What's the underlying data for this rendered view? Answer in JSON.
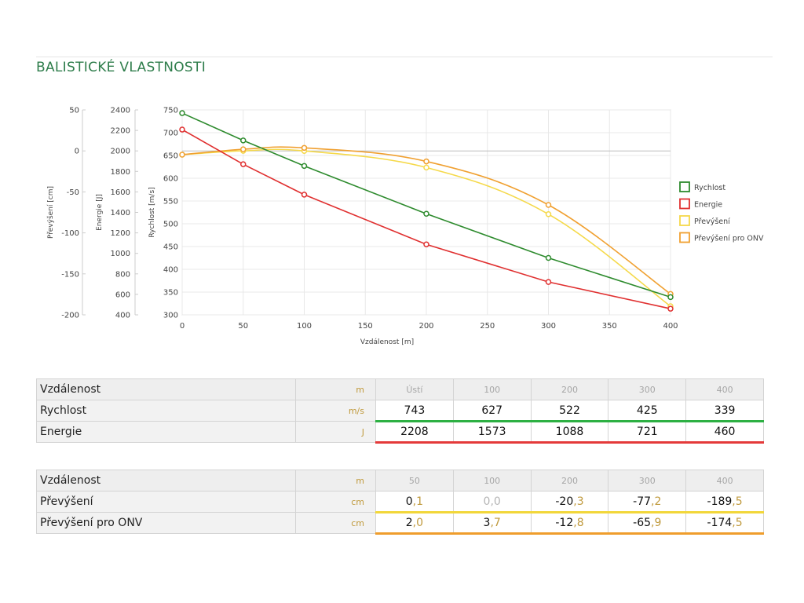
{
  "section": {
    "title": "BALISTICKÉ VLASTNOSTI"
  },
  "chart_data": {
    "type": "line",
    "xlabel": "Vzdálenost [m]",
    "x_ticks": [
      "0",
      "50",
      "100",
      "150",
      "200",
      "250",
      "300",
      "350",
      "400"
    ],
    "xlim": [
      0,
      400
    ],
    "grid": true,
    "legend_position": "right",
    "axes": [
      {
        "label": "Rychlost [m/s]",
        "min": 300,
        "max": 750,
        "ticks": [
          "300",
          "350",
          "400",
          "450",
          "500",
          "550",
          "600",
          "650",
          "700",
          "750"
        ]
      },
      {
        "label": "Energie [J]",
        "min": 400,
        "max": 2400,
        "ticks": [
          "400",
          "600",
          "800",
          "1000",
          "1200",
          "1400",
          "1600",
          "1800",
          "2000",
          "2200",
          "2400"
        ]
      },
      {
        "label": "Převýšení [cm]",
        "min": -200,
        "max": 50,
        "ticks": [
          "-200",
          "-150",
          "-100",
          "-50",
          "0",
          "50"
        ]
      }
    ],
    "series": [
      {
        "name": "Rychlost",
        "color": "#2e8b2e",
        "axis": 0,
        "x": [
          0,
          50,
          100,
          200,
          300,
          400
        ],
        "y": [
          743,
          683,
          627,
          522,
          425,
          339
        ]
      },
      {
        "name": "Energie",
        "color": "#e03030",
        "axis": 1,
        "x": [
          0,
          50,
          100,
          200,
          300,
          400
        ],
        "y": [
          2208,
          1870,
          1573,
          1088,
          721,
          460
        ]
      },
      {
        "name": "Převýšení",
        "color": "#f5d94a",
        "axis": 2,
        "x": [
          0,
          50,
          100,
          200,
          300,
          400
        ],
        "y": [
          -4.6,
          0.1,
          0.0,
          -20.3,
          -77.2,
          -189.5
        ]
      },
      {
        "name": "Převýšení pro ONV",
        "color": "#f0a030",
        "axis": 2,
        "x": [
          0,
          50,
          100,
          200,
          300,
          400
        ],
        "y": [
          -4.6,
          2.0,
          3.7,
          -12.8,
          -65.9,
          -174.5
        ]
      }
    ]
  },
  "table1": {
    "header": {
      "label": "Vzdálenost",
      "unit": "m",
      "cols": [
        "Ústí",
        "100",
        "200",
        "300",
        "400"
      ]
    },
    "rows": [
      {
        "label": "Rychlost",
        "unit": "m/s",
        "values": [
          "743",
          "627",
          "522",
          "425",
          "339"
        ]
      },
      {
        "label": "Energie",
        "unit": "J",
        "values": [
          "2208",
          "1573",
          "1088",
          "721",
          "460"
        ]
      }
    ]
  },
  "table2": {
    "header": {
      "label": "Vzdálenost",
      "unit": "m",
      "cols": [
        "50",
        "100",
        "200",
        "300",
        "400"
      ]
    },
    "rows": [
      {
        "label": "Převýšení",
        "unit": "cm",
        "values": [
          {
            "w": "0",
            "d": ",1"
          },
          {
            "w": "0",
            "d": ",0"
          },
          {
            "w": "-20",
            "d": ",3"
          },
          {
            "w": "-77",
            "d": ",2"
          },
          {
            "w": "-189",
            "d": ",5"
          }
        ]
      },
      {
        "label": "Převýšení pro ONV",
        "unit": "cm",
        "values": [
          {
            "w": "2",
            "d": ",0"
          },
          {
            "w": "3",
            "d": ",7"
          },
          {
            "w": "-12",
            "d": ",8"
          },
          {
            "w": "-65",
            "d": ",9"
          },
          {
            "w": "-174",
            "d": ",5"
          }
        ]
      }
    ]
  }
}
